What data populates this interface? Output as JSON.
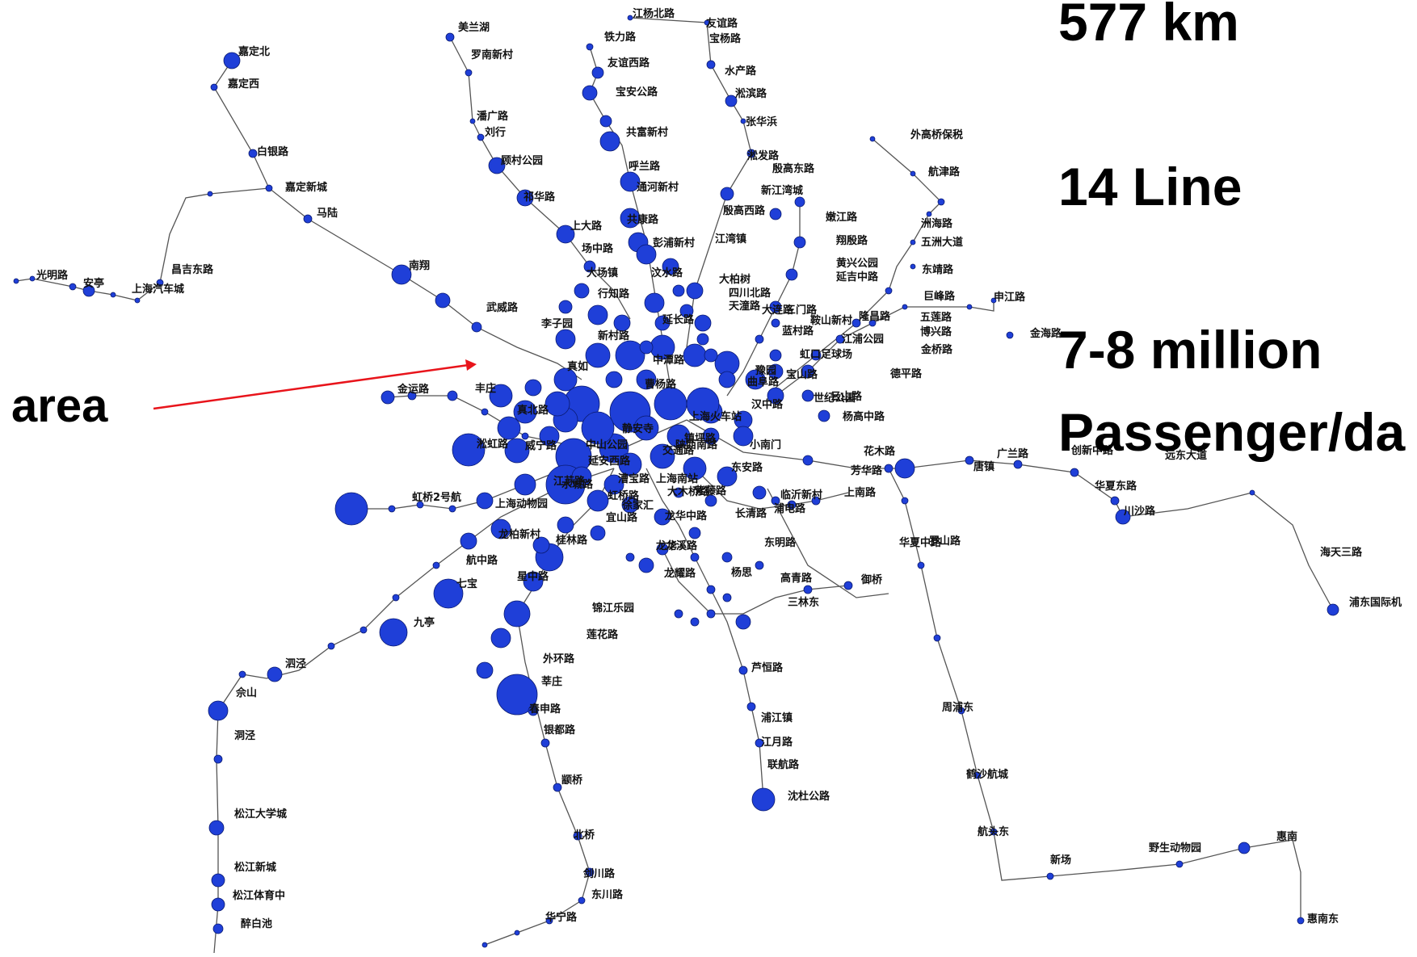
{
  "stats": {
    "length": "577 km",
    "lines": "14 Line",
    "ridership_1": "7-8 million",
    "ridership_2": "Passenger/da"
  },
  "annotation": {
    "label": "area",
    "arrow_color": "#e8141b"
  },
  "style": {
    "station_color": "#1f3fd8",
    "line_color": "#555555"
  },
  "station_labels": [
    "美兰湖",
    "罗南新村",
    "江杨北路",
    "友谊路",
    "宝杨路",
    "嘉定北",
    "嘉定西",
    "白银路",
    "嘉定新城",
    "马陆",
    "铁力路",
    "友谊西路",
    "宝安公路",
    "水产路",
    "淞滨路",
    "张华浜",
    "淞发路",
    "潘广路",
    "刘行",
    "共富新村",
    "顾村公园",
    "呼兰路",
    "通河新村",
    "祁华路",
    "新江湾城",
    "殷高西路",
    "上大路",
    "共康路",
    "彭浦新村",
    "江湾镇",
    "场中路",
    "大场镇",
    "汶水路",
    "大柏树",
    "行知路",
    "光明路",
    "安亭",
    "昌吉东路",
    "上海汽车城",
    "南翔",
    "武威路",
    "李子园",
    "延长路",
    "新村路",
    "真如",
    "中潭路",
    "曹杨路",
    "丰庄",
    "金运路",
    "真北路",
    "静安寺",
    "淞虹路",
    "威宁路",
    "中山公园",
    "延安西路",
    "江苏路",
    "陕西南路",
    "小南门",
    "虹桥2号航",
    "上海动物园",
    "水城路",
    "虹桥路",
    "徐家汇",
    "宜山路",
    "龙华中路",
    "大木桥路",
    "龙柏新村",
    "航中路",
    "紫藤路",
    "星中路",
    "七宝",
    "九亭",
    "泗泾",
    "佘山",
    "洞泾",
    "松江大学城",
    "松江新城",
    "松江体育中",
    "醉白池",
    "龙华",
    "龙耀路",
    "东明路",
    "高青路",
    "御桥",
    "三林东",
    "杨思",
    "锦江乐园",
    "莲花路",
    "外环路",
    "莘庄",
    "春申路",
    "银都路",
    "颛桥",
    "北桥",
    "剑川路",
    "东川路",
    "华宁路",
    "芦恒路",
    "浦江镇",
    "江月路",
    "联航路",
    "沈杜公路",
    "罗山路",
    "周浦东",
    "鹤沙航城",
    "航头东",
    "新场",
    "野生动物园",
    "惠南",
    "惠南东",
    "华夏中路",
    "临沂新村",
    "上南路",
    "外高桥保税",
    "航津路",
    "洲海路",
    "五洲大道",
    "东靖路",
    "巨峰路",
    "五莲路",
    "博兴路",
    "金桥路",
    "申江路",
    "金海路",
    "德平路",
    "云山路",
    "杨高中路",
    "花木路",
    "芳华路",
    "广兰路",
    "唐镇",
    "创新中路",
    "华夏东路",
    "川沙路",
    "远东大道",
    "海天三路",
    "浦东国际机",
    "殷高东路",
    "三门路",
    "江浦公园",
    "黄兴公园",
    "延吉中路",
    "翔殷路",
    "嫩江路",
    "隆昌路",
    "鞍山新村",
    "四川北路",
    "天潼路",
    "豫园",
    "世纪公园",
    "宝山路",
    "虹口足球场",
    "曲阜路",
    "汉中路",
    "上海火车站",
    "镇坪路",
    "交通路",
    "漕宝路",
    "东安路",
    "长清路",
    "大连路",
    "蓝村路",
    "浦电路",
    "上海南站",
    "桂林路",
    "龙溪路"
  ]
}
